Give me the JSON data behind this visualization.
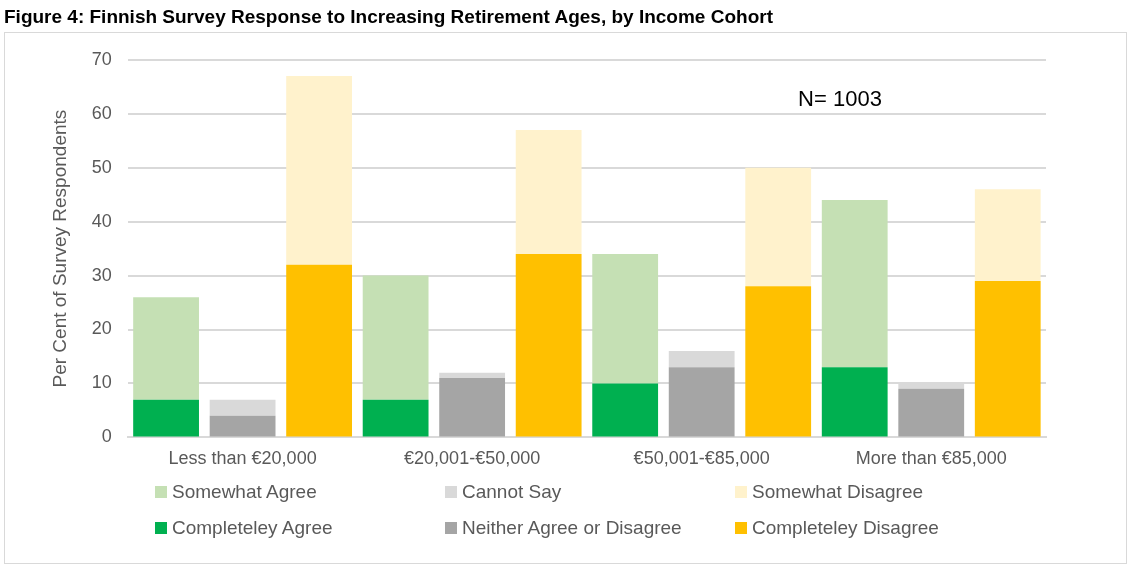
{
  "chart_data": {
    "type": "bar",
    "title": "Figure 4: Finnish Survey Response to Increasing Retirement Ages, by Income Cohort",
    "ylabel": "Per Cent of Survey Respondents",
    "categories": [
      null,
      "Less than €20,000",
      null,
      null,
      "€20,001-€50,000",
      null,
      null,
      "€50,001-€85,000",
      null,
      null,
      "More than €85,000",
      null
    ],
    "stacked": true,
    "series": [
      {
        "name": "Completeley Agree",
        "color": "#00b050",
        "values": [
          7,
          null,
          null,
          7,
          null,
          null,
          10,
          null,
          null,
          13,
          null,
          null
        ]
      },
      {
        "name": "Neither Agree or Disagree",
        "color": "#a5a5a5",
        "values": [
          null,
          4,
          null,
          null,
          11,
          null,
          null,
          13,
          null,
          null,
          9,
          null
        ]
      },
      {
        "name": "Completeley Disagree",
        "color": "#ffc000",
        "values": [
          null,
          null,
          32,
          null,
          null,
          34,
          null,
          null,
          28,
          null,
          null,
          29
        ]
      },
      {
        "name": "Somewhat Agree",
        "color": "#c5e0b4",
        "values": [
          19,
          null,
          null,
          23,
          null,
          null,
          24,
          null,
          null,
          31,
          null,
          null
        ]
      },
      {
        "name": "Cannot Say",
        "color": "#d9d9d9",
        "values": [
          null,
          3,
          null,
          null,
          1,
          null,
          null,
          3,
          null,
          null,
          1,
          null
        ]
      },
      {
        "name": "Somewhat Disagree",
        "color": "#fff2cc",
        "values": [
          null,
          null,
          35,
          null,
          null,
          23,
          null,
          null,
          22,
          null,
          null,
          17
        ]
      }
    ],
    "ylim": [
      0,
      70
    ],
    "yticks": [
      0,
      10,
      20,
      30,
      40,
      50,
      60,
      70
    ],
    "grid": "y",
    "legend": "bottom",
    "annotations": [
      "N= 1003"
    ]
  }
}
